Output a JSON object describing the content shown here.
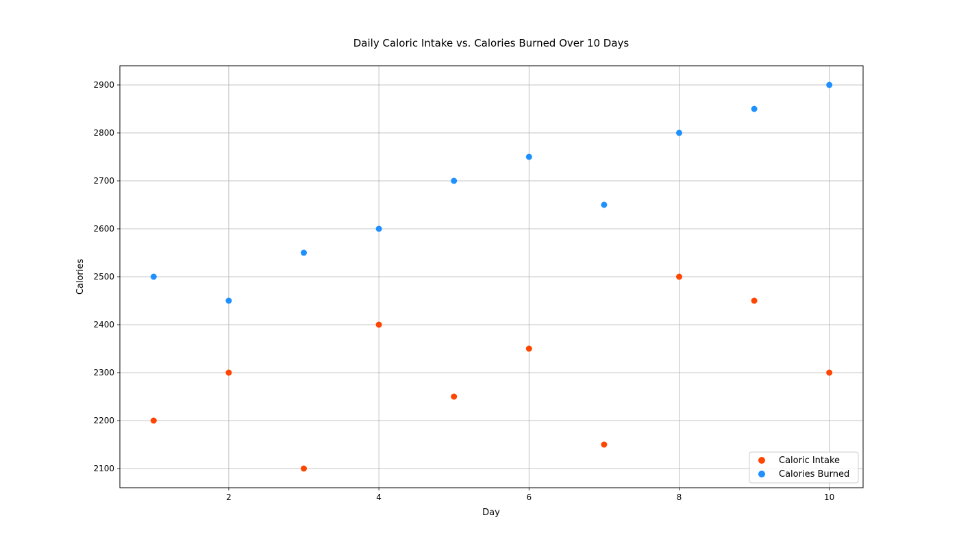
{
  "chart_data": {
    "type": "scatter",
    "title": "Daily Caloric Intake vs. Calories Burned Over 10 Days",
    "xlabel": "Day",
    "ylabel": "Calories",
    "xlim": [
      0.55,
      10.45
    ],
    "ylim": [
      2060,
      2940
    ],
    "xticks": [
      2,
      4,
      6,
      8,
      10
    ],
    "yticks": [
      2100,
      2200,
      2300,
      2400,
      2500,
      2600,
      2700,
      2800,
      2900
    ],
    "grid": true,
    "legend_position": "lower-right",
    "x": [
      1,
      2,
      3,
      4,
      5,
      6,
      7,
      8,
      9,
      10
    ],
    "series": [
      {
        "name": "Caloric Intake",
        "color": "#ff4500",
        "values": [
          2200,
          2300,
          2100,
          2400,
          2250,
          2350,
          2150,
          2500,
          2450,
          2300
        ]
      },
      {
        "name": "Calories Burned",
        "color": "#1e90ff",
        "values": [
          2500,
          2450,
          2550,
          2600,
          2700,
          2750,
          2650,
          2800,
          2850,
          2900
        ]
      }
    ]
  }
}
